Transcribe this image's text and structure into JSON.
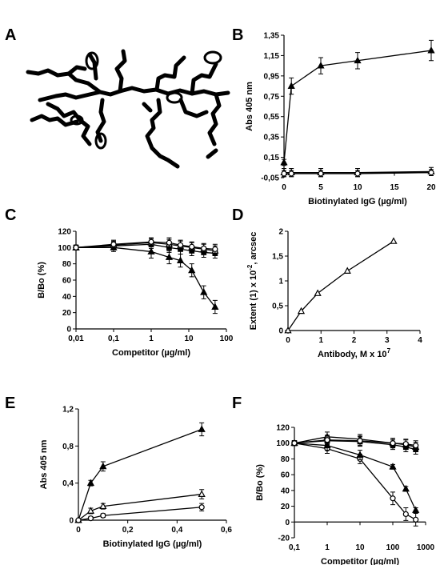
{
  "panel_letters": [
    "A",
    "B",
    "C",
    "D",
    "E",
    "F"
  ],
  "chart_data": [
    {
      "panel": "B",
      "type": "line",
      "xlabel": "Biotinylated IgG (µg/ml)",
      "ylabel": "Abs 405 nm",
      "xlim": [
        0,
        20
      ],
      "ylim": [
        -0.05,
        1.35
      ],
      "xscale": "linear",
      "xticks": [
        "0",
        "5",
        "10",
        "15",
        "20"
      ],
      "yticks": [
        "-0,05",
        "0,15",
        "0,35",
        "0,55",
        "0,75",
        "0,95",
        "1,15",
        "1,35"
      ],
      "xtick_values": [
        0,
        5,
        10,
        15,
        20
      ],
      "ytick_values": [
        -0.05,
        0.15,
        0.35,
        0.55,
        0.75,
        0.95,
        1.15,
        1.35
      ],
      "grid": false,
      "series": [
        {
          "marker": "triangle-filled",
          "x": [
            0,
            1,
            5,
            10,
            20
          ],
          "y": [
            0.1,
            0.85,
            1.05,
            1.1,
            1.2
          ],
          "err": [
            0.03,
            0.08,
            0.08,
            0.08,
            0.1
          ]
        },
        {
          "marker": "triangle-open",
          "x": [
            0,
            1,
            5,
            10,
            20
          ],
          "y": [
            0.0,
            0.0,
            0.0,
            0.0,
            0.01
          ],
          "err": [
            0.04,
            0.04,
            0.04,
            0.04,
            0.04
          ]
        },
        {
          "marker": "circle-open",
          "x": [
            0,
            1,
            5,
            10,
            20
          ],
          "y": [
            -0.01,
            -0.01,
            -0.01,
            -0.01,
            0.0
          ],
          "err": [
            0.03,
            0.03,
            0.03,
            0.03,
            0.03
          ]
        }
      ]
    },
    {
      "panel": "C",
      "type": "line",
      "xlabel": "Competitor (µg/ml)",
      "ylabel": "B/Bo (%)",
      "xlim": [
        0.01,
        100
      ],
      "ylim": [
        0,
        120
      ],
      "xscale": "log",
      "xticks": [
        "0,01",
        "0,1",
        "1",
        "10",
        "100"
      ],
      "yticks": [
        "0",
        "20",
        "40",
        "60",
        "80",
        "100",
        "120"
      ],
      "xtick_values": [
        0.01,
        0.1,
        1,
        10,
        100
      ],
      "ytick_values": [
        0,
        20,
        40,
        60,
        80,
        100,
        120
      ],
      "grid": false,
      "series": [
        {
          "marker": "triangle-filled",
          "x": [
            0.01,
            0.1,
            1,
            3,
            6,
            12,
            25,
            50
          ],
          "y": [
            100,
            100,
            95,
            88,
            84,
            72,
            45,
            27
          ],
          "err": [
            3,
            5,
            8,
            8,
            8,
            8,
            8,
            8
          ]
        },
        {
          "marker": "square-filled",
          "x": [
            0.01,
            0.1,
            1,
            3,
            6,
            12,
            25,
            50
          ],
          "y": [
            100,
            102,
            104,
            100,
            98,
            96,
            94,
            93
          ],
          "err": [
            3,
            5,
            5,
            6,
            6,
            6,
            6,
            6
          ]
        },
        {
          "marker": "triangle-open",
          "x": [
            0.01,
            0.1,
            1,
            3,
            6,
            12,
            25,
            50
          ],
          "y": [
            100,
            103,
            106,
            104,
            102,
            100,
            98,
            96
          ],
          "err": [
            3,
            5,
            5,
            6,
            6,
            6,
            6,
            6
          ]
        },
        {
          "marker": "circle-open",
          "x": [
            0.01,
            0.1,
            1,
            3,
            6,
            12,
            25,
            50
          ],
          "y": [
            100,
            104,
            107,
            106,
            103,
            101,
            99,
            98
          ],
          "err": [
            3,
            5,
            5,
            6,
            6,
            6,
            6,
            6
          ]
        }
      ]
    },
    {
      "panel": "D",
      "type": "line",
      "xlabel": "Antibody, M x 10",
      "xlabel_sup": "7",
      "ylabel": "Extent (1) x 10",
      "ylabel_sup": "-2",
      "ylabel_tail": ", arcsec",
      "xlim": [
        0,
        4
      ],
      "ylim": [
        0,
        2
      ],
      "xscale": "linear",
      "xticks": [
        "0",
        "1",
        "2",
        "3",
        "4"
      ],
      "yticks": [
        "0",
        "0,5",
        "1",
        "1,5",
        "2"
      ],
      "xtick_values": [
        0,
        1,
        2,
        3,
        4
      ],
      "ytick_values": [
        0,
        0.5,
        1,
        1.5,
        2
      ],
      "grid": false,
      "series": [
        {
          "marker": "triangle-open",
          "x": [
            0,
            0.4,
            0.9,
            1.8,
            3.2
          ],
          "y": [
            0,
            0.39,
            0.75,
            1.2,
            1.8
          ],
          "err": [
            0,
            0,
            0,
            0,
            0
          ]
        }
      ]
    },
    {
      "panel": "E",
      "type": "line",
      "xlabel": "Biotinylated IgG (µg/ml)",
      "ylabel": "Abs 405 nm",
      "xlim": [
        0,
        0.6
      ],
      "ylim": [
        0,
        1.2
      ],
      "xscale": "linear",
      "xticks": [
        "0",
        "0,2",
        "0,4",
        "0,6"
      ],
      "yticks": [
        "0",
        "0,4",
        "0,8",
        "1,2"
      ],
      "xtick_values": [
        0,
        0.2,
        0.4,
        0.6
      ],
      "ytick_values": [
        0,
        0.4,
        0.8,
        1.2
      ],
      "grid": false,
      "series": [
        {
          "marker": "triangle-filled",
          "x": [
            0,
            0.05,
            0.1,
            0.5
          ],
          "y": [
            0,
            0.4,
            0.58,
            0.98
          ],
          "err": [
            0,
            0.03,
            0.05,
            0.07
          ]
        },
        {
          "marker": "triangle-open",
          "x": [
            0,
            0.05,
            0.1,
            0.5
          ],
          "y": [
            0,
            0.1,
            0.15,
            0.28
          ],
          "err": [
            0,
            0.03,
            0.03,
            0.05
          ]
        },
        {
          "marker": "circle-open",
          "x": [
            0,
            0.05,
            0.1,
            0.5
          ],
          "y": [
            0,
            0.02,
            0.05,
            0.14
          ],
          "err": [
            0,
            0.02,
            0.02,
            0.04
          ]
        }
      ]
    },
    {
      "panel": "F",
      "type": "line",
      "xlabel": "Competitor (µg/ml)",
      "ylabel": "B/Bo (%)",
      "xlim": [
        0.1,
        1000
      ],
      "ylim": [
        -20,
        120
      ],
      "xscale": "log",
      "xticks": [
        "0,1",
        "1",
        "10",
        "100",
        "1000"
      ],
      "yticks": [
        "-20",
        "0",
        "20",
        "40",
        "60",
        "80",
        "100",
        "120"
      ],
      "xtick_values": [
        0.1,
        1,
        10,
        100,
        1000
      ],
      "ytick_values": [
        -20,
        0,
        20,
        40,
        60,
        80,
        100,
        120
      ],
      "grid": false,
      "series": [
        {
          "marker": "circle-open",
          "x": [
            0.1,
            1,
            10,
            100,
            250,
            500
          ],
          "y": [
            100,
            93,
            80,
            30,
            10,
            3
          ],
          "err": [
            3,
            6,
            6,
            8,
            8,
            8
          ]
        },
        {
          "marker": "triangle-filled",
          "x": [
            0.1,
            1,
            10,
            100,
            250,
            500
          ],
          "y": [
            100,
            97,
            85,
            70,
            42,
            15
          ],
          "err": [
            3,
            6,
            6,
            3,
            3,
            3
          ]
        },
        {
          "marker": "triangle-open",
          "x": [
            0.1,
            1,
            10,
            100,
            250,
            500
          ],
          "y": [
            100,
            108,
            105,
            100,
            98,
            95
          ],
          "err": [
            3,
            6,
            6,
            6,
            6,
            6
          ]
        },
        {
          "marker": "square-filled",
          "x": [
            0.1,
            1,
            10,
            100,
            250,
            500
          ],
          "y": [
            100,
            103,
            102,
            98,
            95,
            92
          ],
          "err": [
            3,
            6,
            6,
            6,
            6,
            6
          ]
        },
        {
          "marker": "circle-open",
          "x": [
            0.1,
            1,
            10,
            100,
            250,
            500
          ],
          "y": [
            100,
            104,
            103,
            100,
            99,
            97
          ],
          "err": [
            3,
            6,
            6,
            6,
            6,
            6
          ]
        }
      ]
    }
  ]
}
